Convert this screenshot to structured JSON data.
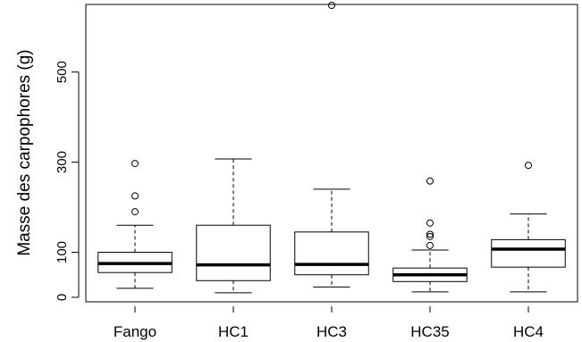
{
  "chart_data": {
    "type": "boxplot",
    "ylabel": "Masse des carpophores (g)",
    "xlabel": "",
    "ylim": [
      -10,
      650
    ],
    "yticks": [
      0,
      100,
      300,
      500
    ],
    "grid": false,
    "categories": [
      "Fango",
      "HC1",
      "HC3",
      "HC35",
      "HC4"
    ],
    "boxes": [
      {
        "name": "Fango",
        "whisker_low": 20,
        "q1": 55,
        "median": 75,
        "q3": 100,
        "whisker_high": 160,
        "outliers": [
          190,
          225,
          297
        ]
      },
      {
        "name": "HC1",
        "whisker_low": 10,
        "q1": 37,
        "median": 72,
        "q3": 160,
        "whisker_high": 307,
        "outliers": []
      },
      {
        "name": "HC3",
        "whisker_low": 23,
        "q1": 50,
        "median": 73,
        "q3": 145,
        "whisker_high": 240,
        "outliers": [
          648
        ]
      },
      {
        "name": "HC35",
        "whisker_low": 12,
        "q1": 35,
        "median": 50,
        "q3": 65,
        "whisker_high": 105,
        "outliers": [
          115,
          135,
          140,
          165,
          258
        ]
      },
      {
        "name": "HC4",
        "whisker_low": 12,
        "q1": 67,
        "median": 107,
        "q3": 128,
        "whisker_high": 185,
        "outliers": [
          293
        ]
      }
    ]
  }
}
